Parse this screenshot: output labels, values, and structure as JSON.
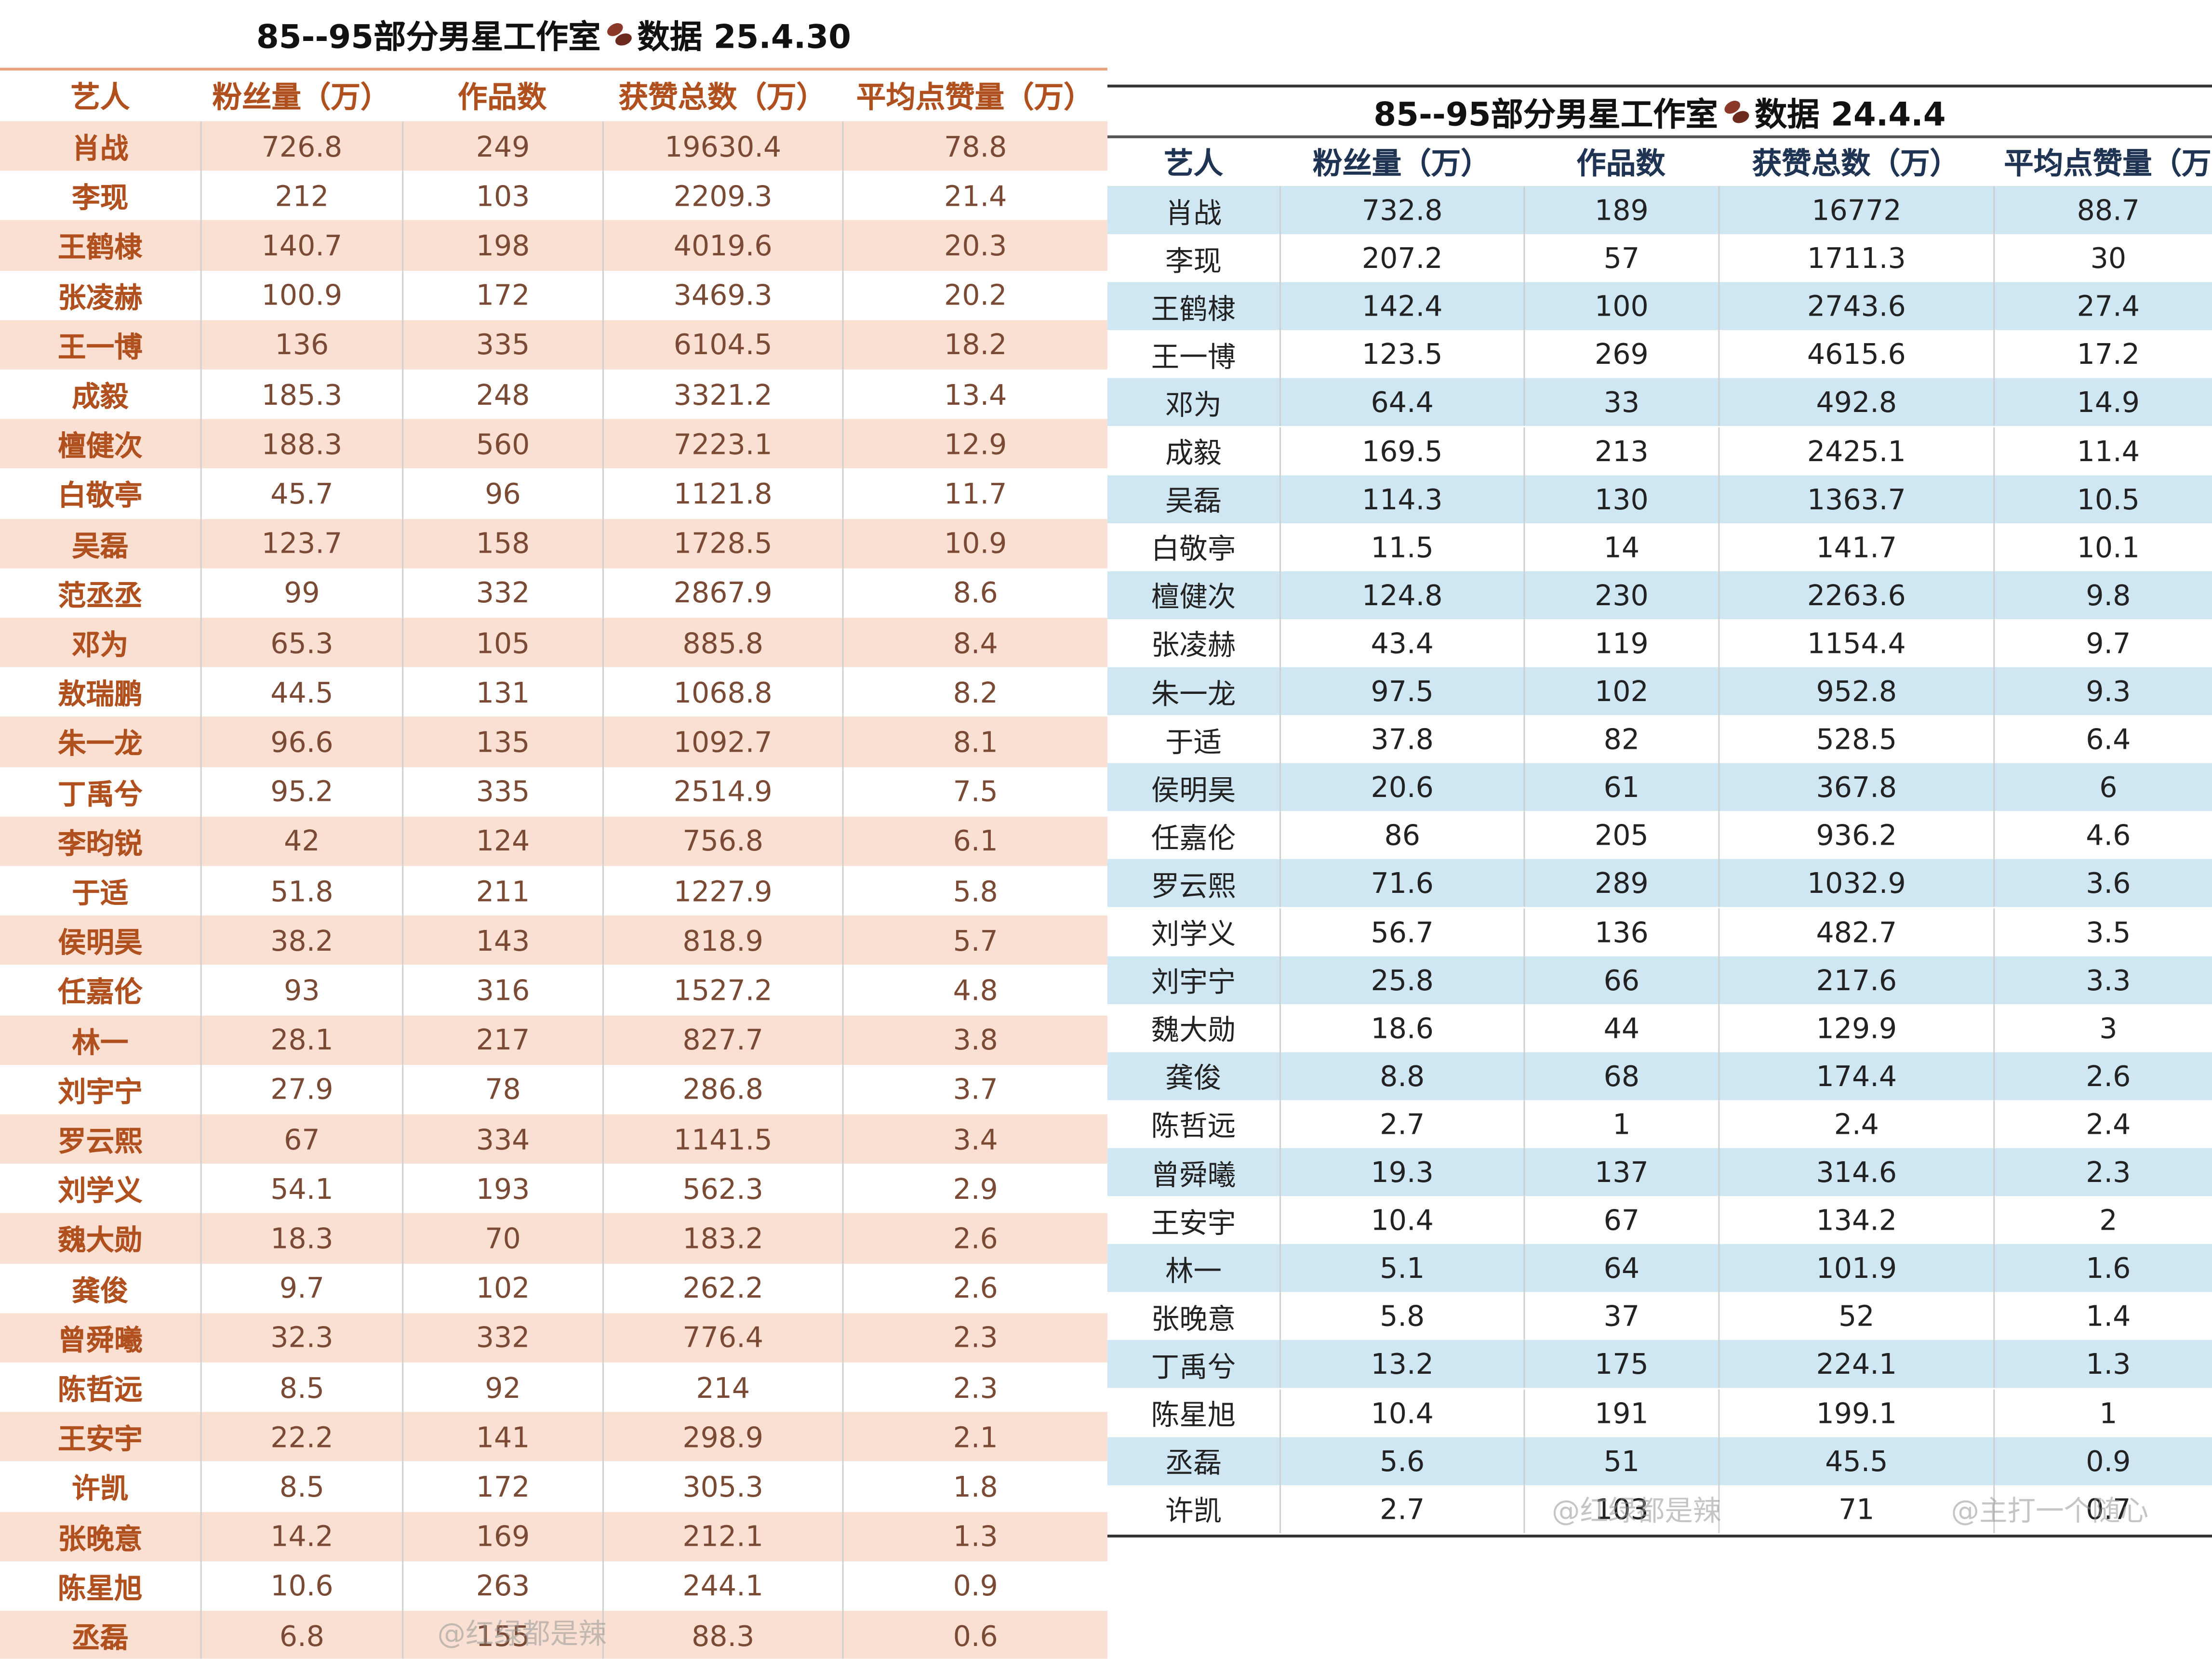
{
  "tables": [
    {
      "title": [
        "85--95部分男星工作室",
        "数据 25.4.30"
      ],
      "headers": [
        "艺人",
        "粉丝量（万）",
        "作品数",
        "获赞总数（万）",
        "平均点赞量（万）"
      ],
      "rows": [
        [
          "肖战",
          "726.8",
          "249",
          "19630.4",
          "78.8"
        ],
        [
          "李现",
          "212",
          "103",
          "2209.3",
          "21.4"
        ],
        [
          "王鹤棣",
          "140.7",
          "198",
          "4019.6",
          "20.3"
        ],
        [
          "张凌赫",
          "100.9",
          "172",
          "3469.3",
          "20.2"
        ],
        [
          "王一博",
          "136",
          "335",
          "6104.5",
          "18.2"
        ],
        [
          "成毅",
          "185.3",
          "248",
          "3321.2",
          "13.4"
        ],
        [
          "檀健次",
          "188.3",
          "560",
          "7223.1",
          "12.9"
        ],
        [
          "白敬亭",
          "45.7",
          "96",
          "1121.8",
          "11.7"
        ],
        [
          "吴磊",
          "123.7",
          "158",
          "1728.5",
          "10.9"
        ],
        [
          "范丞丞",
          "99",
          "332",
          "2867.9",
          "8.6"
        ],
        [
          "邓为",
          "65.3",
          "105",
          "885.8",
          "8.4"
        ],
        [
          "敖瑞鹏",
          "44.5",
          "131",
          "1068.8",
          "8.2"
        ],
        [
          "朱一龙",
          "96.6",
          "135",
          "1092.7",
          "8.1"
        ],
        [
          "丁禹兮",
          "95.2",
          "335",
          "2514.9",
          "7.5"
        ],
        [
          "李昀锐",
          "42",
          "124",
          "756.8",
          "6.1"
        ],
        [
          "于适",
          "51.8",
          "211",
          "1227.9",
          "5.8"
        ],
        [
          "侯明昊",
          "38.2",
          "143",
          "818.9",
          "5.7"
        ],
        [
          "任嘉伦",
          "93",
          "316",
          "1527.2",
          "4.8"
        ],
        [
          "林一",
          "28.1",
          "217",
          "827.7",
          "3.8"
        ],
        [
          "刘宇宁",
          "27.9",
          "78",
          "286.8",
          "3.7"
        ],
        [
          "罗云熙",
          "67",
          "334",
          "1141.5",
          "3.4"
        ],
        [
          "刘学义",
          "54.1",
          "193",
          "562.3",
          "2.9"
        ],
        [
          "魏大勋",
          "18.3",
          "70",
          "183.2",
          "2.6"
        ],
        [
          "龚俊",
          "9.7",
          "102",
          "262.2",
          "2.6"
        ],
        [
          "曾舜曦",
          "32.3",
          "332",
          "776.4",
          "2.3"
        ],
        [
          "陈哲远",
          "8.5",
          "92",
          "214",
          "2.3"
        ],
        [
          "王安宇",
          "22.2",
          "141",
          "298.9",
          "2.1"
        ],
        [
          "许凯",
          "8.5",
          "172",
          "305.3",
          "1.8"
        ],
        [
          "张晚意",
          "14.2",
          "169",
          "212.1",
          "1.3"
        ],
        [
          "陈星旭",
          "10.6",
          "263",
          "244.1",
          "0.9"
        ],
        [
          "丞磊",
          "6.8",
          "155",
          "88.3",
          "0.6"
        ]
      ],
      "watermarks": [
        "@红绿都是辣"
      ]
    },
    {
      "title": [
        "85--95部分男星工作室",
        "数据 24.4.4"
      ],
      "headers": [
        "艺人",
        "粉丝量（万）",
        "作品数",
        "获赞总数（万）",
        "平均点赞量（万"
      ],
      "rows": [
        [
          "肖战",
          "732.8",
          "189",
          "16772",
          "88.7"
        ],
        [
          "李现",
          "207.2",
          "57",
          "1711.3",
          "30"
        ],
        [
          "王鹤棣",
          "142.4",
          "100",
          "2743.6",
          "27.4"
        ],
        [
          "王一博",
          "123.5",
          "269",
          "4615.6",
          "17.2"
        ],
        [
          "邓为",
          "64.4",
          "33",
          "492.8",
          "14.9"
        ],
        [
          "成毅",
          "169.5",
          "213",
          "2425.1",
          "11.4"
        ],
        [
          "吴磊",
          "114.3",
          "130",
          "1363.7",
          "10.5"
        ],
        [
          "白敬亭",
          "11.5",
          "14",
          "141.7",
          "10.1"
        ],
        [
          "檀健次",
          "124.8",
          "230",
          "2263.6",
          "9.8"
        ],
        [
          "张凌赫",
          "43.4",
          "119",
          "1154.4",
          "9.7"
        ],
        [
          "朱一龙",
          "97.5",
          "102",
          "952.8",
          "9.3"
        ],
        [
          "于适",
          "37.8",
          "82",
          "528.5",
          "6.4"
        ],
        [
          "侯明昊",
          "20.6",
          "61",
          "367.8",
          "6"
        ],
        [
          "任嘉伦",
          "86",
          "205",
          "936.2",
          "4.6"
        ],
        [
          "罗云熙",
          "71.6",
          "289",
          "1032.9",
          "3.6"
        ],
        [
          "刘学义",
          "56.7",
          "136",
          "482.7",
          "3.5"
        ],
        [
          "刘宇宁",
          "25.8",
          "66",
          "217.6",
          "3.3"
        ],
        [
          "魏大勋",
          "18.6",
          "44",
          "129.9",
          "3"
        ],
        [
          "龚俊",
          "8.8",
          "68",
          "174.4",
          "2.6"
        ],
        [
          "陈哲远",
          "2.7",
          "1",
          "2.4",
          "2.4"
        ],
        [
          "曾舜曦",
          "19.3",
          "137",
          "314.6",
          "2.3"
        ],
        [
          "王安宇",
          "10.4",
          "67",
          "134.2",
          "2"
        ],
        [
          "林一",
          "5.1",
          "64",
          "101.9",
          "1.6"
        ],
        [
          "张晚意",
          "5.8",
          "37",
          "52",
          "1.4"
        ],
        [
          "丁禹兮",
          "13.2",
          "175",
          "224.1",
          "1.3"
        ],
        [
          "陈星旭",
          "10.4",
          "191",
          "199.1",
          "1"
        ],
        [
          "丞磊",
          "5.6",
          "51",
          "45.5",
          "0.9"
        ],
        [
          "许凯",
          "2.7",
          "103",
          "71",
          "0.7"
        ]
      ],
      "watermarks": [
        "@红绿都是辣",
        "@主打一个随心"
      ]
    }
  ]
}
